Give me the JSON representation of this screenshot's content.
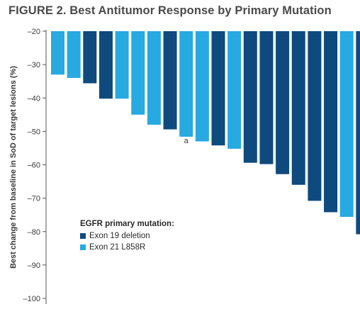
{
  "chart_data": {
    "type": "bar",
    "title": "FIGURE 2. Best Antitumor Response by Primary Mutation",
    "ylabel": "Best change from baseline in SoD of target lesions (%)",
    "ylim": [
      -100,
      -20
    ],
    "yticks": [
      -20,
      -30,
      -40,
      -50,
      -60,
      -70,
      -80,
      -90,
      -100
    ],
    "legend_title": "EGFR primary mutation:",
    "legend_placement": "lower-left",
    "series": [
      {
        "name": "Exon 19 deletion",
        "color": "#0e4a7e"
      },
      {
        "name": "Exon 21 L858R",
        "color": "#27aae1"
      }
    ],
    "bars": [
      {
        "value": -33.0,
        "series": 1
      },
      {
        "value": -34.0,
        "series": 1
      },
      {
        "value": -35.6,
        "series": 0
      },
      {
        "value": -40.2,
        "series": 0
      },
      {
        "value": -40.2,
        "series": 1
      },
      {
        "value": -45.0,
        "series": 1
      },
      {
        "value": -48.0,
        "series": 1
      },
      {
        "value": -49.4,
        "series": 0
      },
      {
        "value": -51.6,
        "series": 1
      },
      {
        "value": -53.0,
        "series": 1
      },
      {
        "value": -54.2,
        "series": 0
      },
      {
        "value": -55.2,
        "series": 1
      },
      {
        "value": -59.4,
        "series": 0
      },
      {
        "value": -59.8,
        "series": 0
      },
      {
        "value": -62.8,
        "series": 0
      },
      {
        "value": -66.0,
        "series": 0
      },
      {
        "value": -70.8,
        "series": 0
      },
      {
        "value": -74.2,
        "series": 0
      },
      {
        "value": -75.6,
        "series": 1
      },
      {
        "value": -80.8,
        "series": 0
      }
    ],
    "annotations": [
      {
        "text": "a",
        "bar_index": 8
      }
    ]
  }
}
